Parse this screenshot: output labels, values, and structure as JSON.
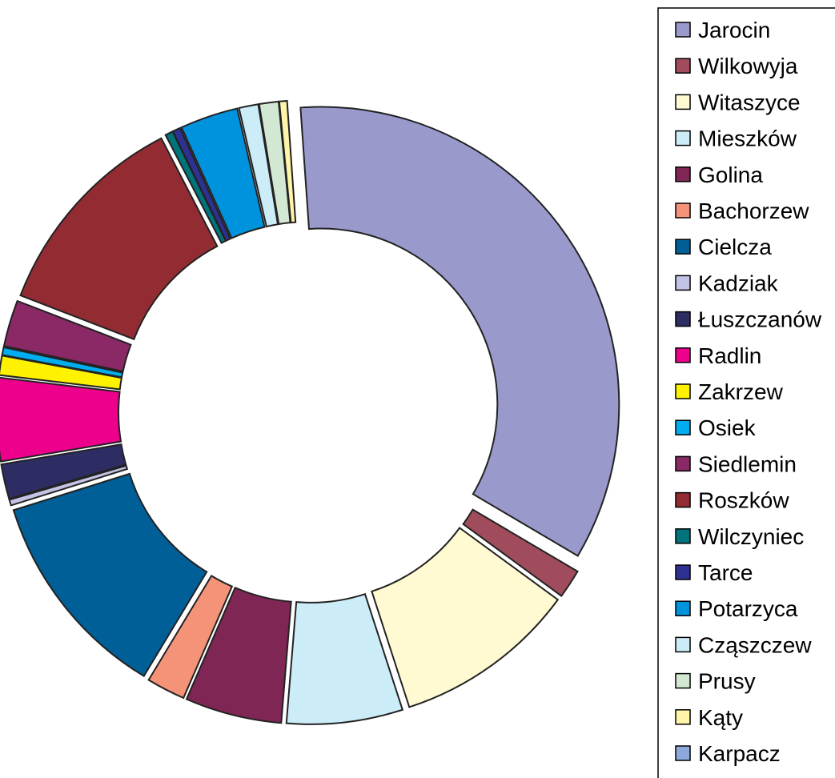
{
  "chart_data": {
    "type": "pie",
    "variant": "exploded-donut",
    "title": "",
    "legend_position": "right",
    "slices": [
      {
        "label": "Jarocin",
        "value": 33.0,
        "color": "#9999CC"
      },
      {
        "label": "Wilkowyja",
        "value": 1.5,
        "color": "#A04C5C"
      },
      {
        "label": "Witaszyce",
        "value": 9.5,
        "color": "#FFFAD2"
      },
      {
        "label": "Mieszków",
        "value": 6.0,
        "color": "#CCECF8"
      },
      {
        "label": "Golina",
        "value": 5.0,
        "color": "#7F2654"
      },
      {
        "label": "Bachorzew",
        "value": 2.0,
        "color": "#F49378"
      },
      {
        "label": "Cielcza",
        "value": 11.0,
        "color": "#005F96"
      },
      {
        "label": "Kadziak",
        "value": 0.3,
        "color": "#C3C3E6"
      },
      {
        "label": "Łuszczanów",
        "value": 1.8,
        "color": "#2D2D63"
      },
      {
        "label": "Radlin",
        "value": 4.3,
        "color": "#EC008C"
      },
      {
        "label": "Zakrzew",
        "value": 1.0,
        "color": "#FFF200"
      },
      {
        "label": "Osiek",
        "value": 0.4,
        "color": "#00AEEF"
      },
      {
        "label": "Siedlemin",
        "value": 2.4,
        "color": "#8B2866"
      },
      {
        "label": "Roszków",
        "value": 11.0,
        "color": "#922C32"
      },
      {
        "label": "Wilczyniec",
        "value": 0.4,
        "color": "#00747A"
      },
      {
        "label": "Tarce",
        "value": 0.4,
        "color": "#2E3192"
      },
      {
        "label": "Potarzyca",
        "value": 3.0,
        "color": "#0093DD"
      },
      {
        "label": "Cząszczew",
        "value": 1.0,
        "color": "#CCECF8"
      },
      {
        "label": "Prusy",
        "value": 1.0,
        "color": "#D2E8D2"
      },
      {
        "label": "Kąty",
        "value": 0.4,
        "color": "#FFF5A8"
      },
      {
        "label": "Karpacz",
        "value": 0.0,
        "color": "#8DA9DB"
      }
    ]
  }
}
